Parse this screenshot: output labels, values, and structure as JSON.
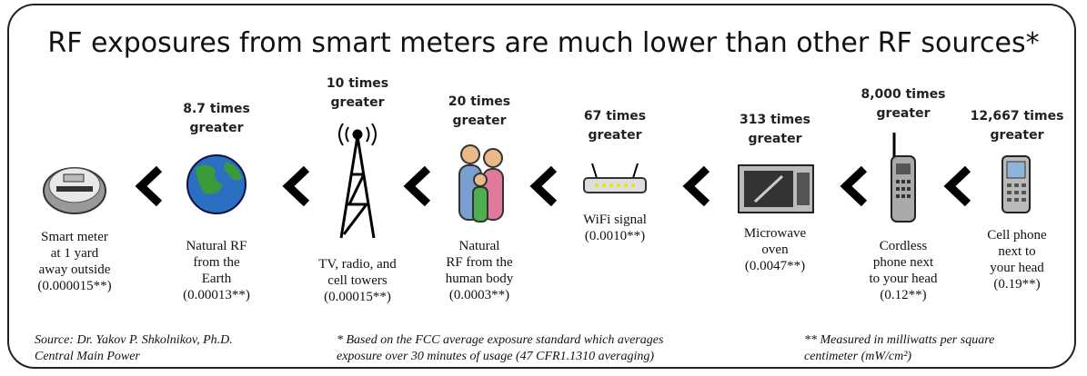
{
  "title": "RF exposures from smart meters are much lower than other RF sources*",
  "items": [
    {
      "multiplier": [],
      "label": [
        "Smart meter",
        "at 1 yard",
        "away outside",
        "(0.000015**)"
      ]
    },
    {
      "multiplier": [
        "8.7 times",
        "greater"
      ],
      "label": [
        "Natural RF",
        "from the",
        "Earth",
        "(0.00013**)"
      ]
    },
    {
      "multiplier": [
        "10 times",
        "greater"
      ],
      "label": [
        "TV, radio, and",
        "cell towers",
        "(0.00015**)"
      ]
    },
    {
      "multiplier": [
        "20 times",
        "greater"
      ],
      "label": [
        "Natural",
        "RF from the",
        "human body",
        "(0.0003**)"
      ]
    },
    {
      "multiplier": [
        "67 times",
        "greater"
      ],
      "label": [
        "WiFi signal",
        "(0.0010**)"
      ]
    },
    {
      "multiplier": [
        "313 times",
        "greater"
      ],
      "label": [
        "Microwave",
        "oven",
        "(0.0047**)"
      ]
    },
    {
      "multiplier": [
        "8,000 times",
        "greater"
      ],
      "label": [
        "Cordless",
        "phone next",
        "to your head",
        "(0.12**)"
      ]
    },
    {
      "multiplier": [
        "12,667 times",
        "greater"
      ],
      "label": [
        "Cell phone",
        "next to",
        "your head",
        "(0.19**)"
      ]
    }
  ],
  "footnotes": [
    [
      "Source: Dr. Yakov P. Shkolnikov, Ph.D.",
      "Central Main Power"
    ],
    [
      "*  Based on the FCC average exposure standard which averages",
      "exposure over 30 minutes of usage (47 CFR1.1310 averaging)"
    ],
    [
      "** Measured in milliwatts per square",
      "centimeter (mW/cm²)"
    ]
  ]
}
